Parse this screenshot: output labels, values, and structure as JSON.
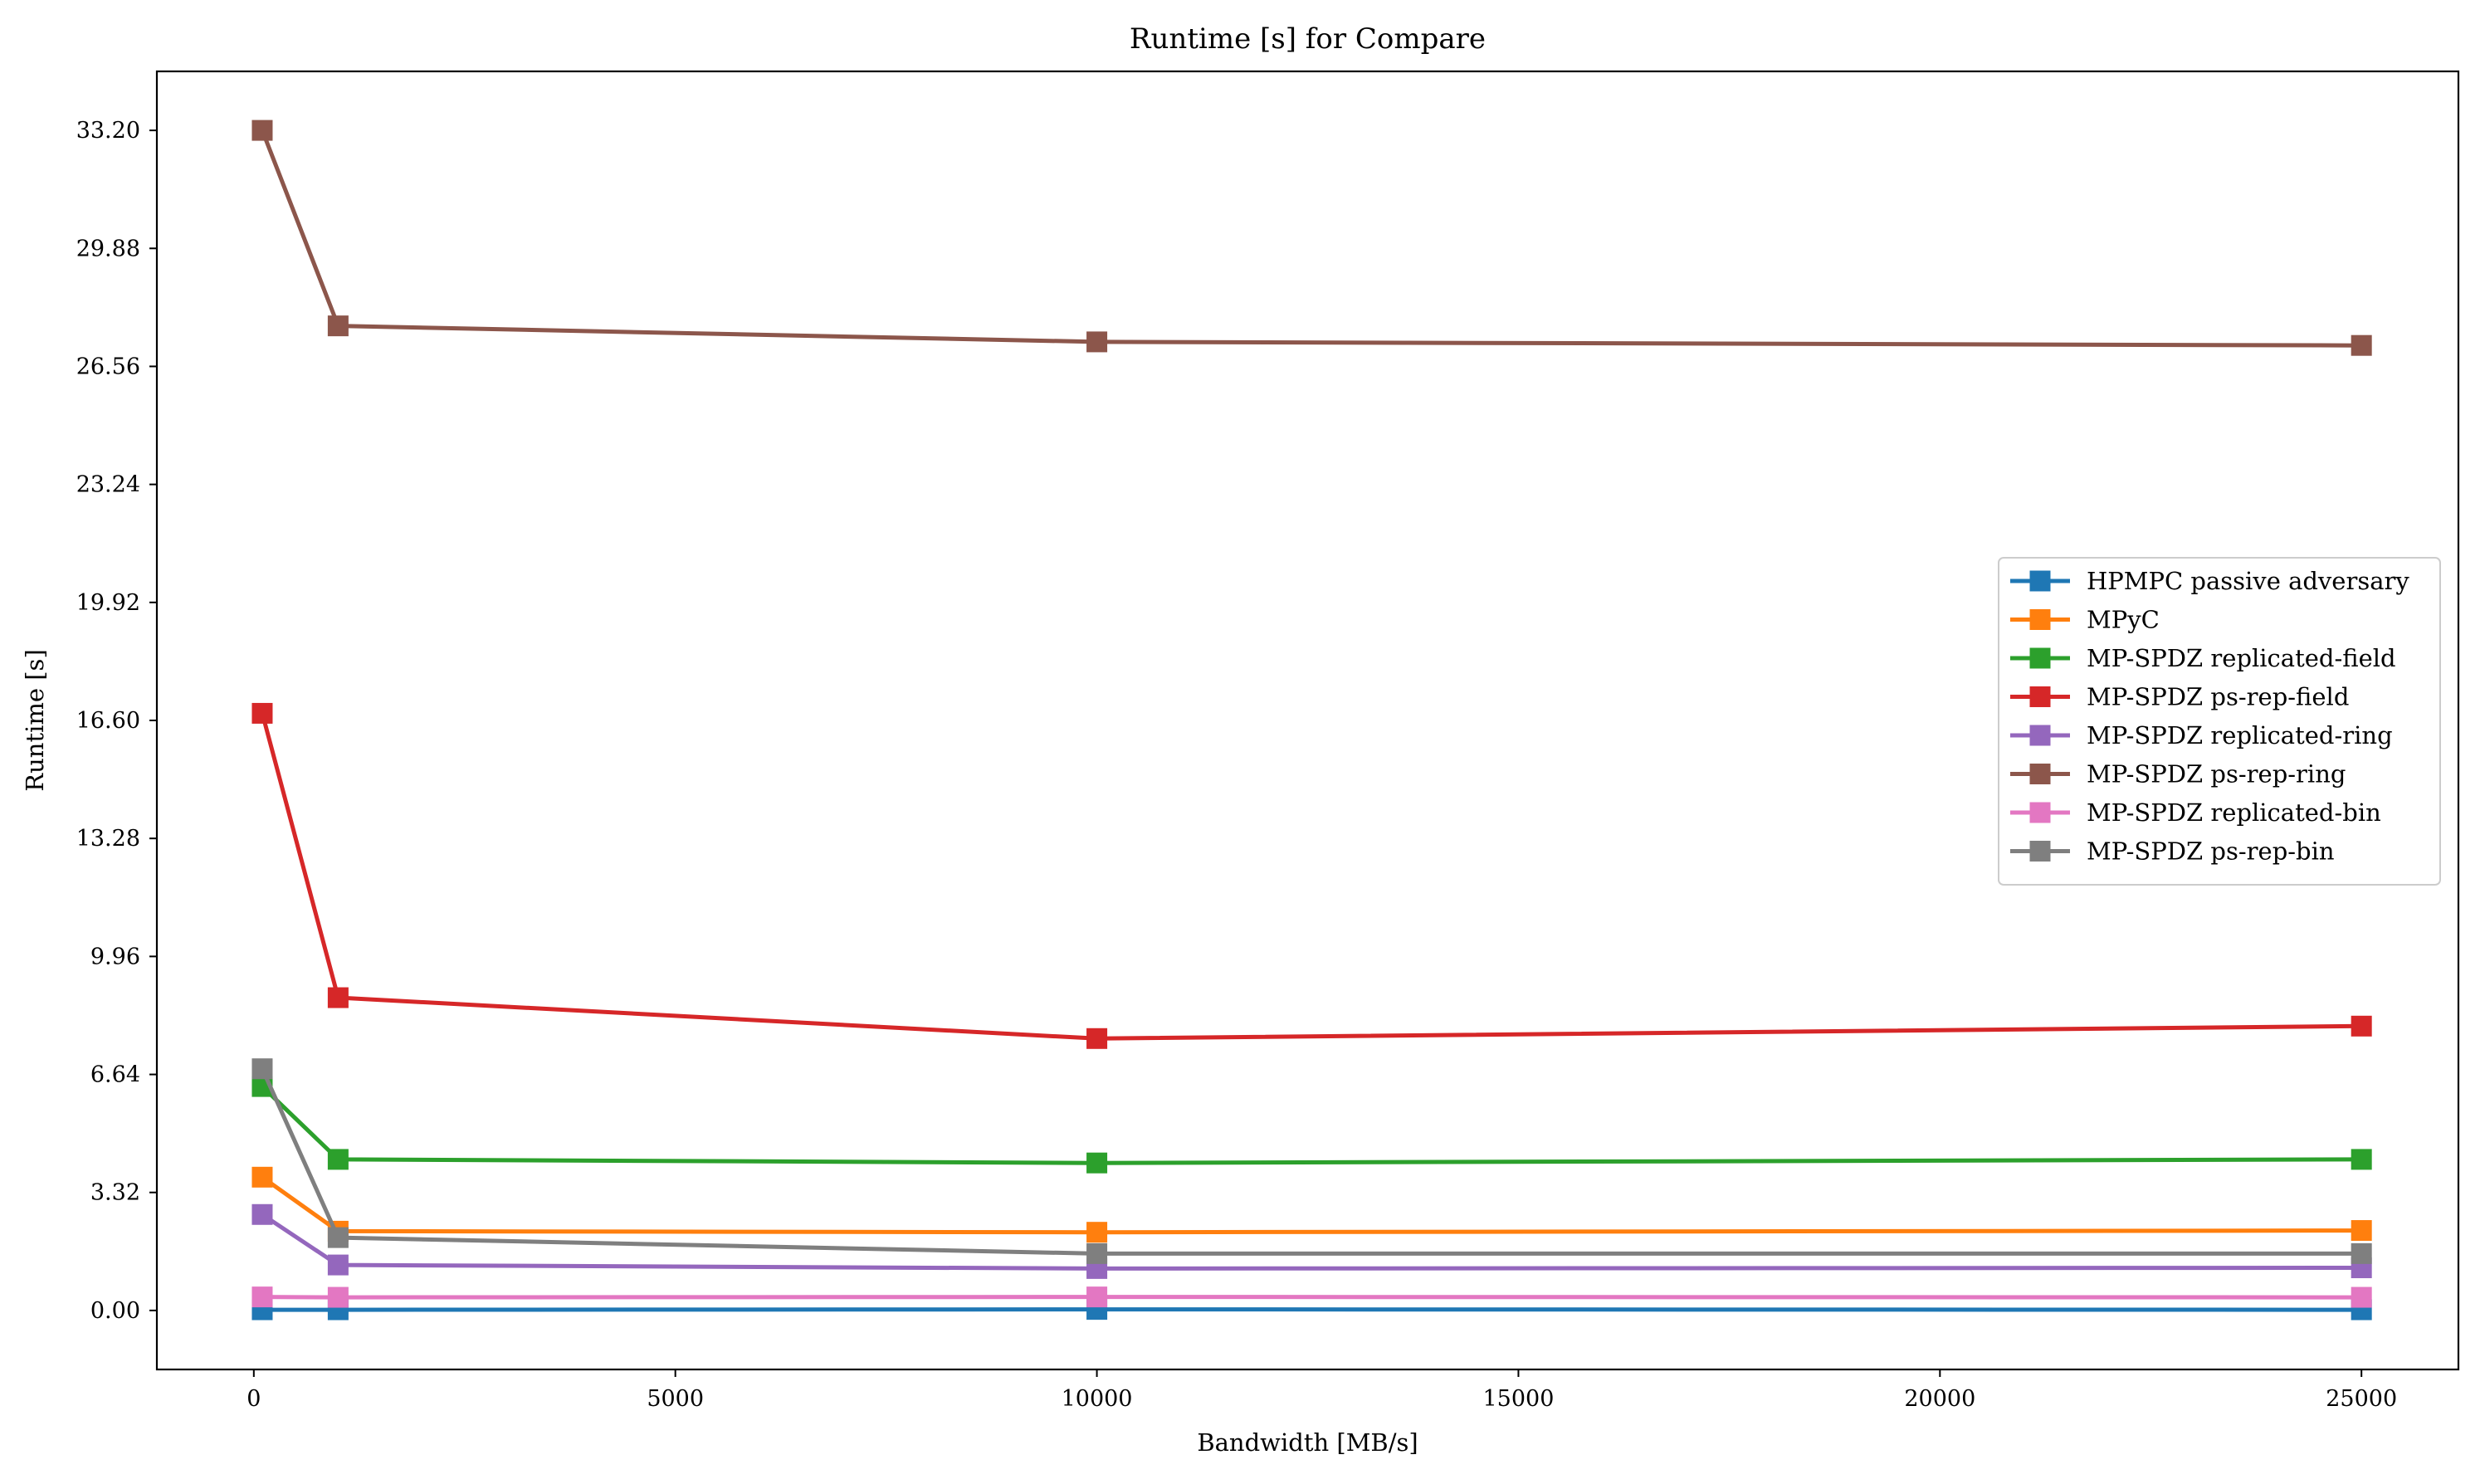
{
  "chart_data": {
    "type": "line",
    "title": "Runtime [s] for Compare",
    "xlabel": "Bandwidth [MB/s]",
    "ylabel": "Runtime [s]",
    "xlim": [
      -1150,
      26150
    ],
    "ylim": [
      -1.66,
      34.86
    ],
    "xticks": [
      0,
      5000,
      10000,
      15000,
      20000,
      25000
    ],
    "xtick_labels": [
      "0",
      "5000",
      "10000",
      "15000",
      "20000",
      "25000"
    ],
    "yticks": [
      0.0,
      3.32,
      6.64,
      9.96,
      13.28,
      16.6,
      19.92,
      23.24,
      26.56,
      29.88,
      33.2
    ],
    "ytick_labels": [
      "0.00",
      "3.32",
      "6.64",
      "9.96",
      "13.28",
      "16.60",
      "19.92",
      "23.24",
      "26.56",
      "29.88",
      "33.20"
    ],
    "grid": false,
    "legend_position": "center-right",
    "marker": "square",
    "x": [
      100,
      1000,
      10000,
      25000
    ],
    "series": [
      {
        "name": "HPMPC passive adversary",
        "color": "#1f77b4",
        "values": [
          0.02,
          0.02,
          0.03,
          0.02
        ]
      },
      {
        "name": "MPyC",
        "color": "#ff7f0e",
        "values": [
          3.75,
          2.23,
          2.2,
          2.25
        ]
      },
      {
        "name": "MP-SPDZ replicated-field",
        "color": "#2ca02c",
        "values": [
          6.3,
          4.25,
          4.15,
          4.25
        ]
      },
      {
        "name": "MP-SPDZ ps-rep-field",
        "color": "#d62728",
        "values": [
          16.8,
          8.8,
          7.65,
          8.0
        ]
      },
      {
        "name": "MP-SPDZ replicated-ring",
        "color": "#9467bd",
        "values": [
          2.7,
          1.28,
          1.18,
          1.2
        ]
      },
      {
        "name": "MP-SPDZ ps-rep-ring",
        "color": "#8c564b",
        "values": [
          33.2,
          27.7,
          27.25,
          27.15
        ]
      },
      {
        "name": "MP-SPDZ replicated-bin",
        "color": "#e377c2",
        "values": [
          0.38,
          0.37,
          0.38,
          0.37
        ]
      },
      {
        "name": "MP-SPDZ ps-rep-bin",
        "color": "#7f7f7f",
        "values": [
          6.8,
          2.05,
          1.6,
          1.6
        ]
      }
    ]
  }
}
